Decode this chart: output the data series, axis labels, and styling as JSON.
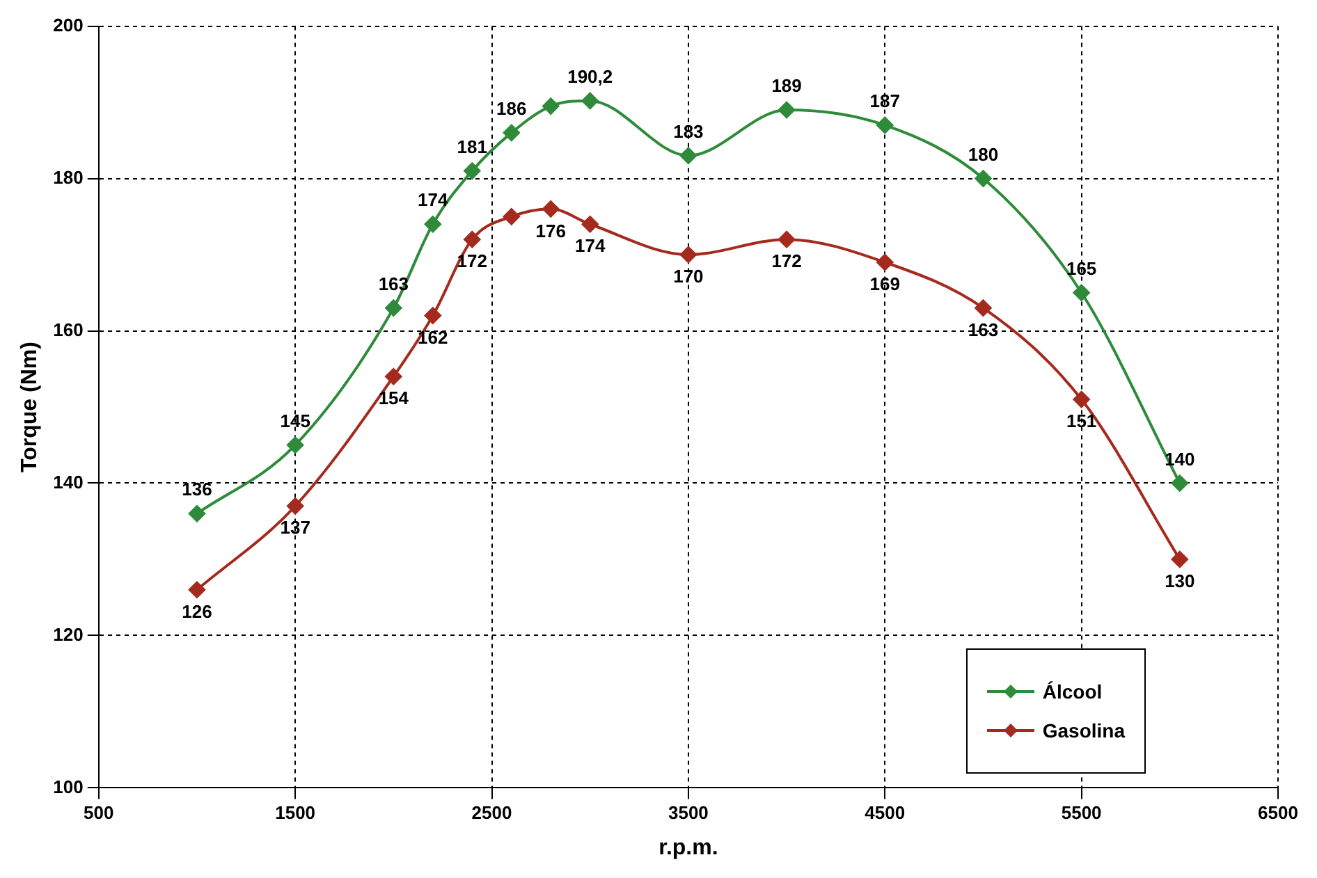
{
  "chart_data": {
    "type": "line",
    "xlabel": "r.p.m.",
    "ylabel": "Torque (Nm)",
    "x": [
      1000,
      1500,
      2000,
      2200,
      2400,
      2600,
      2800,
      3000,
      3500,
      4000,
      4500,
      5000,
      5500,
      6000
    ],
    "series": [
      {
        "name": "Álcool",
        "color": "#2e8b3a",
        "values": [
          136,
          145,
          163,
          174,
          181,
          186,
          189.5,
          190.2,
          183,
          189,
          187,
          180,
          165,
          140
        ],
        "value_labels": [
          "136",
          "145",
          "163",
          "174",
          "181",
          "186",
          null,
          "190,2",
          "183",
          "189",
          "187",
          "180",
          "165",
          "140"
        ]
      },
      {
        "name": "Gasolina",
        "color": "#a52a1e",
        "values": [
          126,
          137,
          154,
          162,
          172,
          175,
          176,
          174,
          170,
          172,
          169,
          163,
          151,
          130
        ],
        "value_labels": [
          "126",
          "137",
          "154",
          "162",
          "172",
          null,
          "176",
          "174",
          "170",
          "172",
          "169",
          "163",
          "151",
          "130"
        ]
      }
    ],
    "xlim": [
      500,
      6500
    ],
    "xticks": [
      500,
      1500,
      2500,
      3500,
      4500,
      5500,
      6500
    ],
    "ylim": [
      100,
      200
    ],
    "yticks": [
      100,
      120,
      140,
      160,
      180,
      200
    ],
    "grid": true,
    "legend": "bottom right",
    "marker": "diamond",
    "line_style": "solid"
  }
}
